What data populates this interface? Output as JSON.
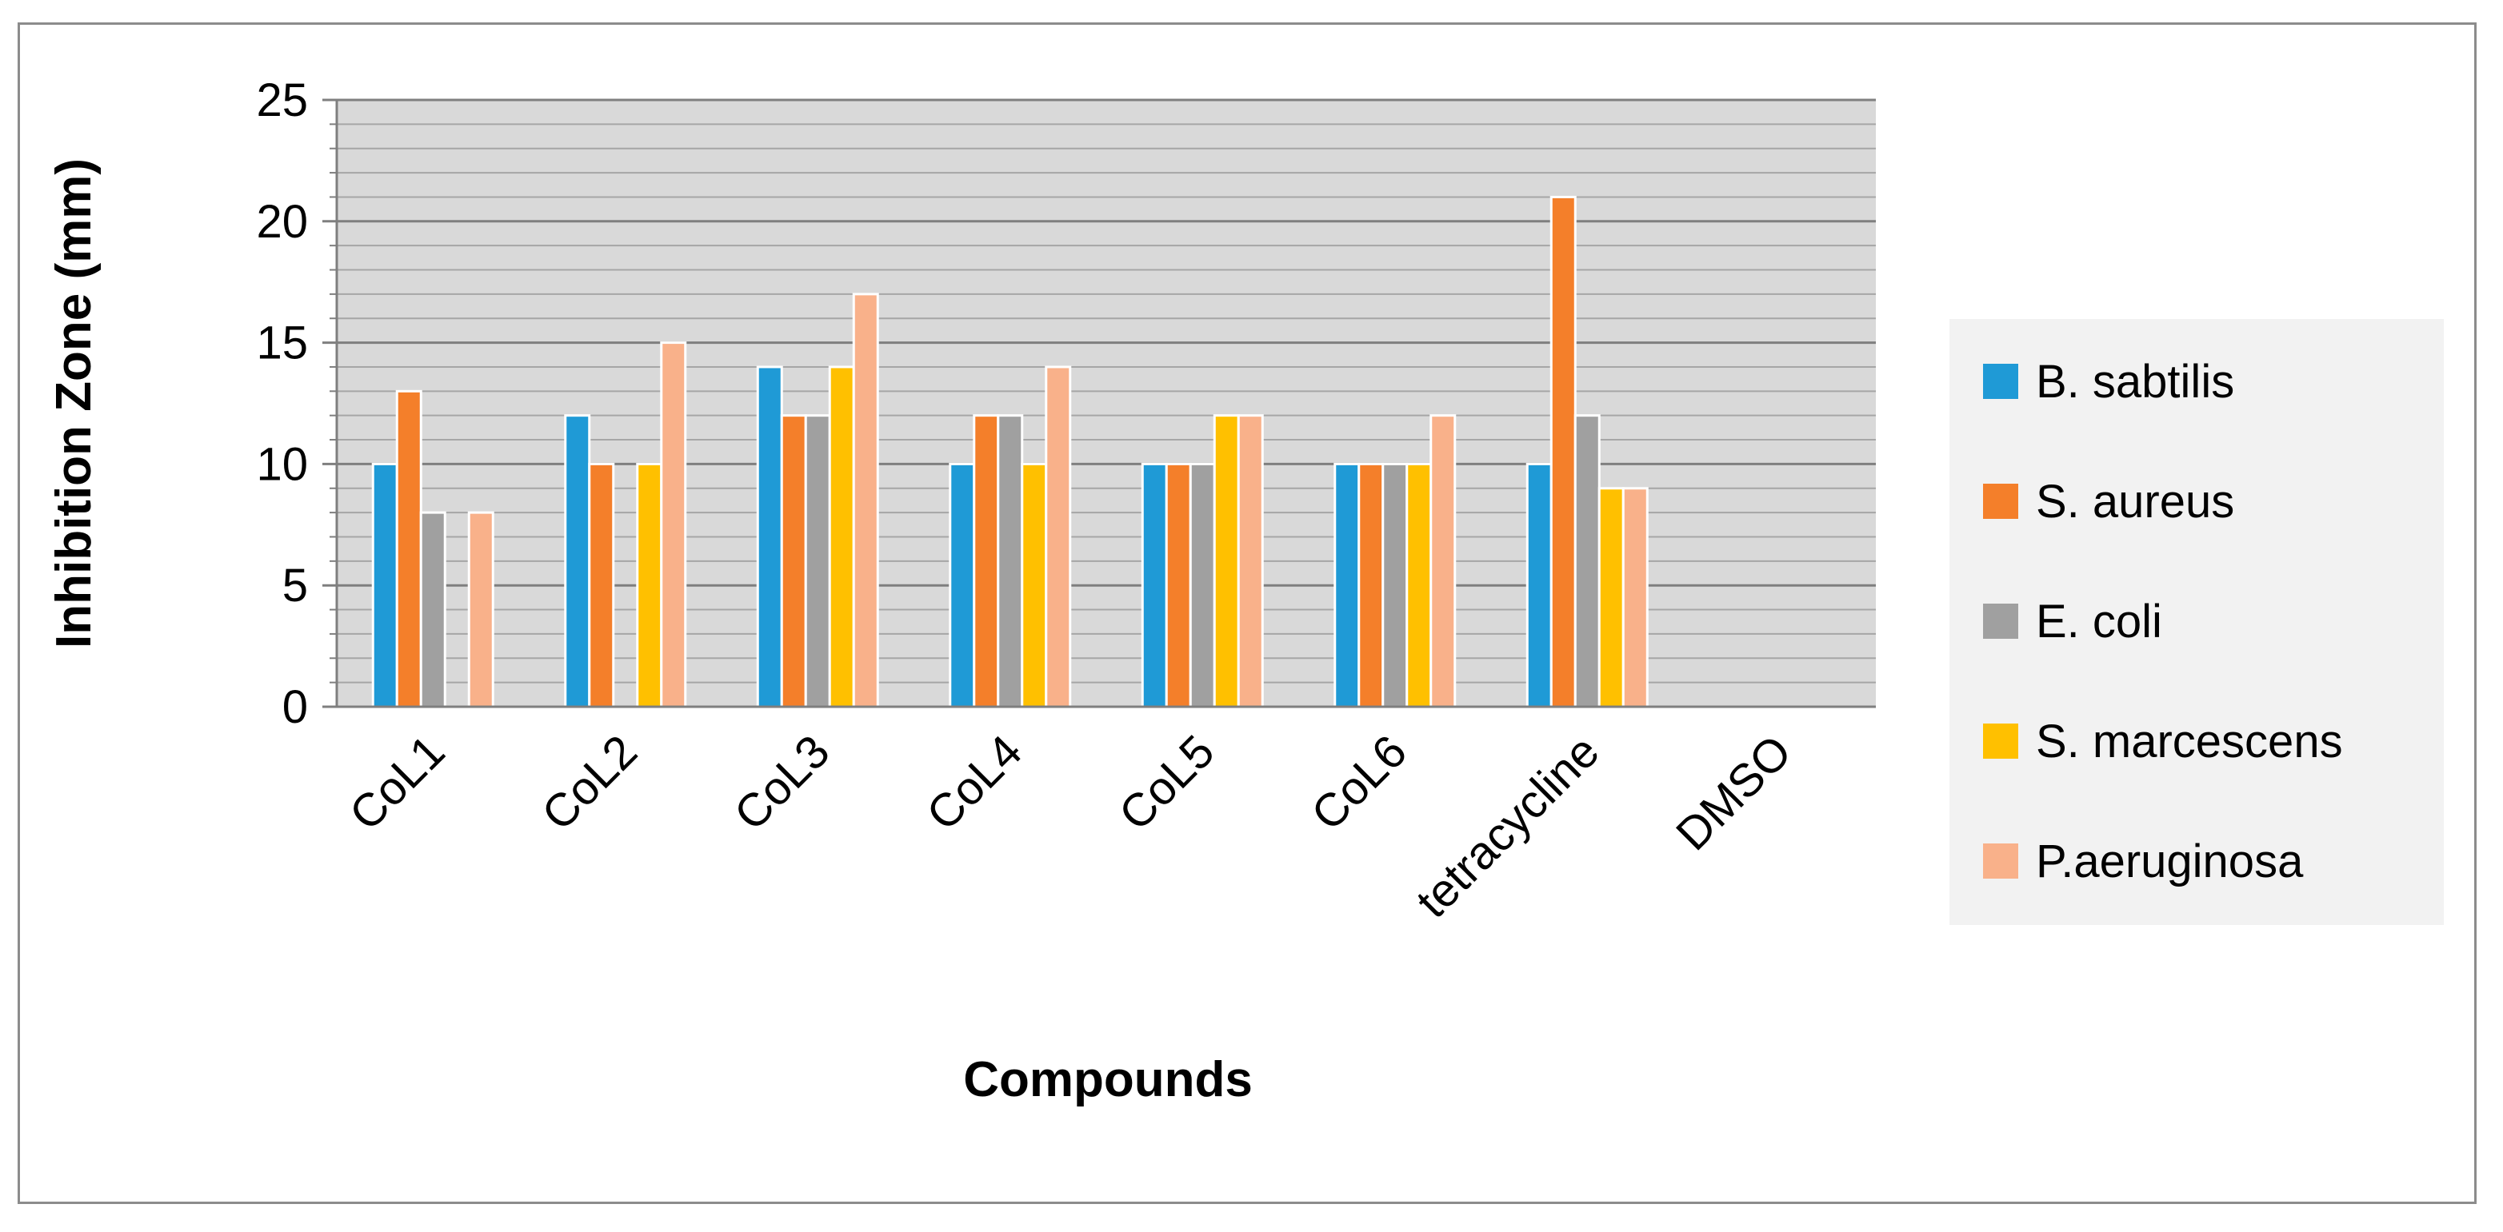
{
  "chart_data": {
    "type": "bar",
    "title": "",
    "xlabel": "Compounds",
    "ylabel": "Inhibition Zone (mm)",
    "ylim": [
      0,
      25
    ],
    "yticks": [
      0,
      5,
      10,
      15,
      20,
      25
    ],
    "categories": [
      "CoL1",
      "CoL2",
      "CoL3",
      "CoL4",
      "CoL5",
      "CoL6",
      "tetracycline",
      "DMSO"
    ],
    "series": [
      {
        "name": "B. sabtilis",
        "color": "#1f9ad6",
        "values": [
          10,
          12,
          14,
          10,
          10,
          10,
          10,
          0
        ]
      },
      {
        "name": "S. aureus",
        "color": "#f47f2a",
        "values": [
          13,
          10,
          12,
          12,
          10,
          10,
          21,
          0
        ]
      },
      {
        "name": "E. coli",
        "color": "#a0a0a0",
        "values": [
          8,
          0,
          12,
          12,
          10,
          10,
          12,
          0
        ]
      },
      {
        "name": "S. marcescens",
        "color": "#ffc000",
        "values": [
          0,
          10,
          14,
          10,
          12,
          10,
          9,
          0
        ]
      },
      {
        "name": "P.aeruginosa",
        "color": "#f9b18a",
        "values": [
          8,
          15,
          17,
          14,
          12,
          12,
          9,
          0
        ]
      }
    ],
    "grid": true,
    "minor_grid": true,
    "plot_background": "#d9d9d9",
    "legend_position": "right"
  }
}
